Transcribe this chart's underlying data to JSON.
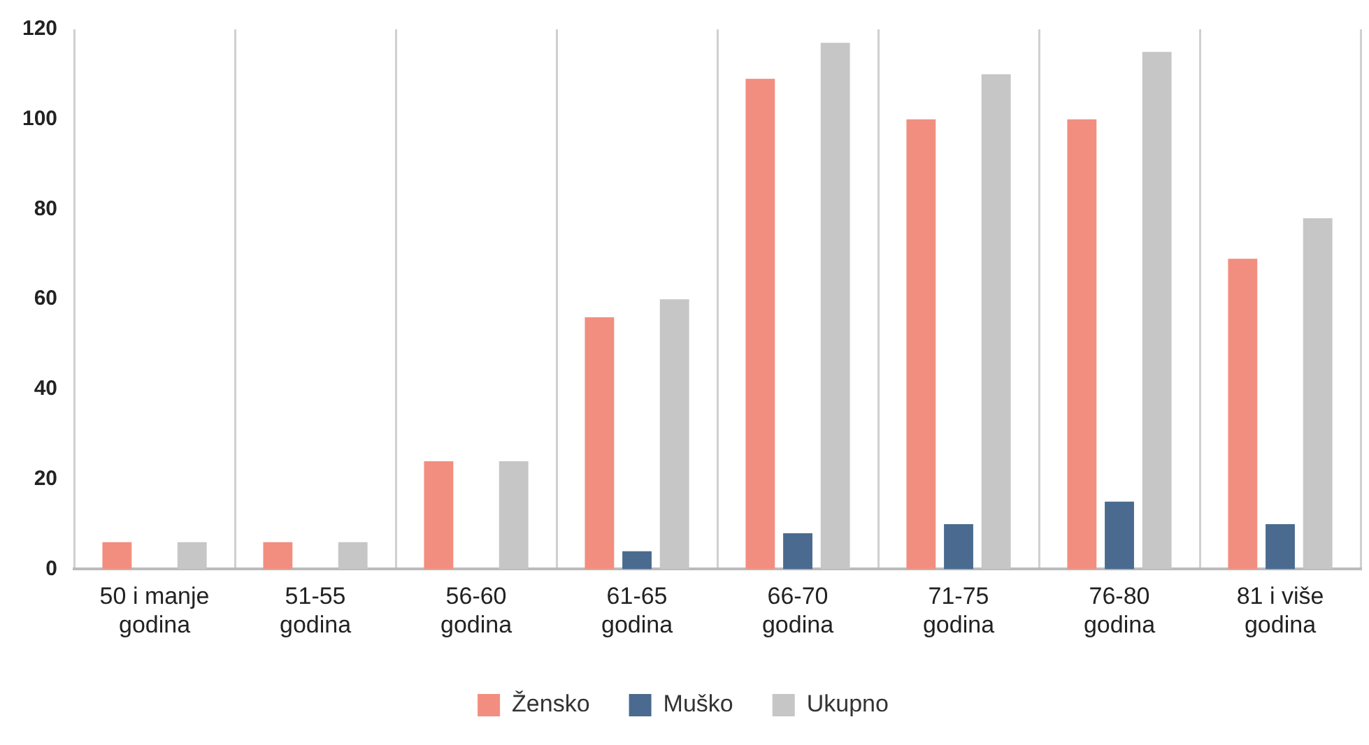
{
  "chart_data": {
    "type": "bar",
    "categories": [
      "50 i manje godina",
      "51-55 godina",
      "56-60 godina",
      "61-65 godina",
      "66-70 godina",
      "71-75 godina",
      "76-80 godina",
      "81 i više godina"
    ],
    "series": [
      {
        "name": "Žensko",
        "color": "#f28e7f",
        "values": [
          6,
          6,
          24,
          56,
          109,
          100,
          100,
          69
        ]
      },
      {
        "name": "Muško",
        "color": "#4a6b8f",
        "values": [
          0,
          0,
          0,
          4,
          8,
          10,
          15,
          10
        ]
      },
      {
        "name": "Ukupno",
        "color": "#c6c6c6",
        "values": [
          6,
          6,
          24,
          60,
          117,
          110,
          115,
          78
        ]
      }
    ],
    "ylim": [
      0,
      120
    ],
    "yticks": [
      0,
      20,
      40,
      60,
      80,
      100,
      120
    ],
    "grid": "x",
    "legend": "bottom"
  }
}
